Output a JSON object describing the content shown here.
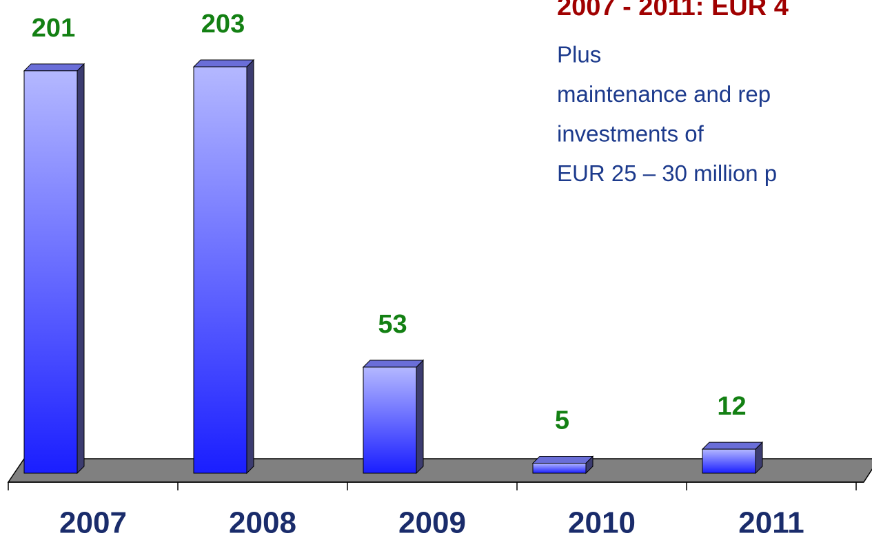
{
  "chart_data": {
    "type": "bar3d",
    "annotation_title": "2007 - 2011: EUR 4",
    "annotation_lines": [
      "Plus",
      "maintenance and rep",
      "investments of",
      "EUR 25 – 30 million p"
    ],
    "categories": [
      "2007",
      "2008",
      "2009",
      "2010",
      "2011"
    ],
    "values": [
      201,
      203,
      53,
      5,
      12
    ]
  }
}
